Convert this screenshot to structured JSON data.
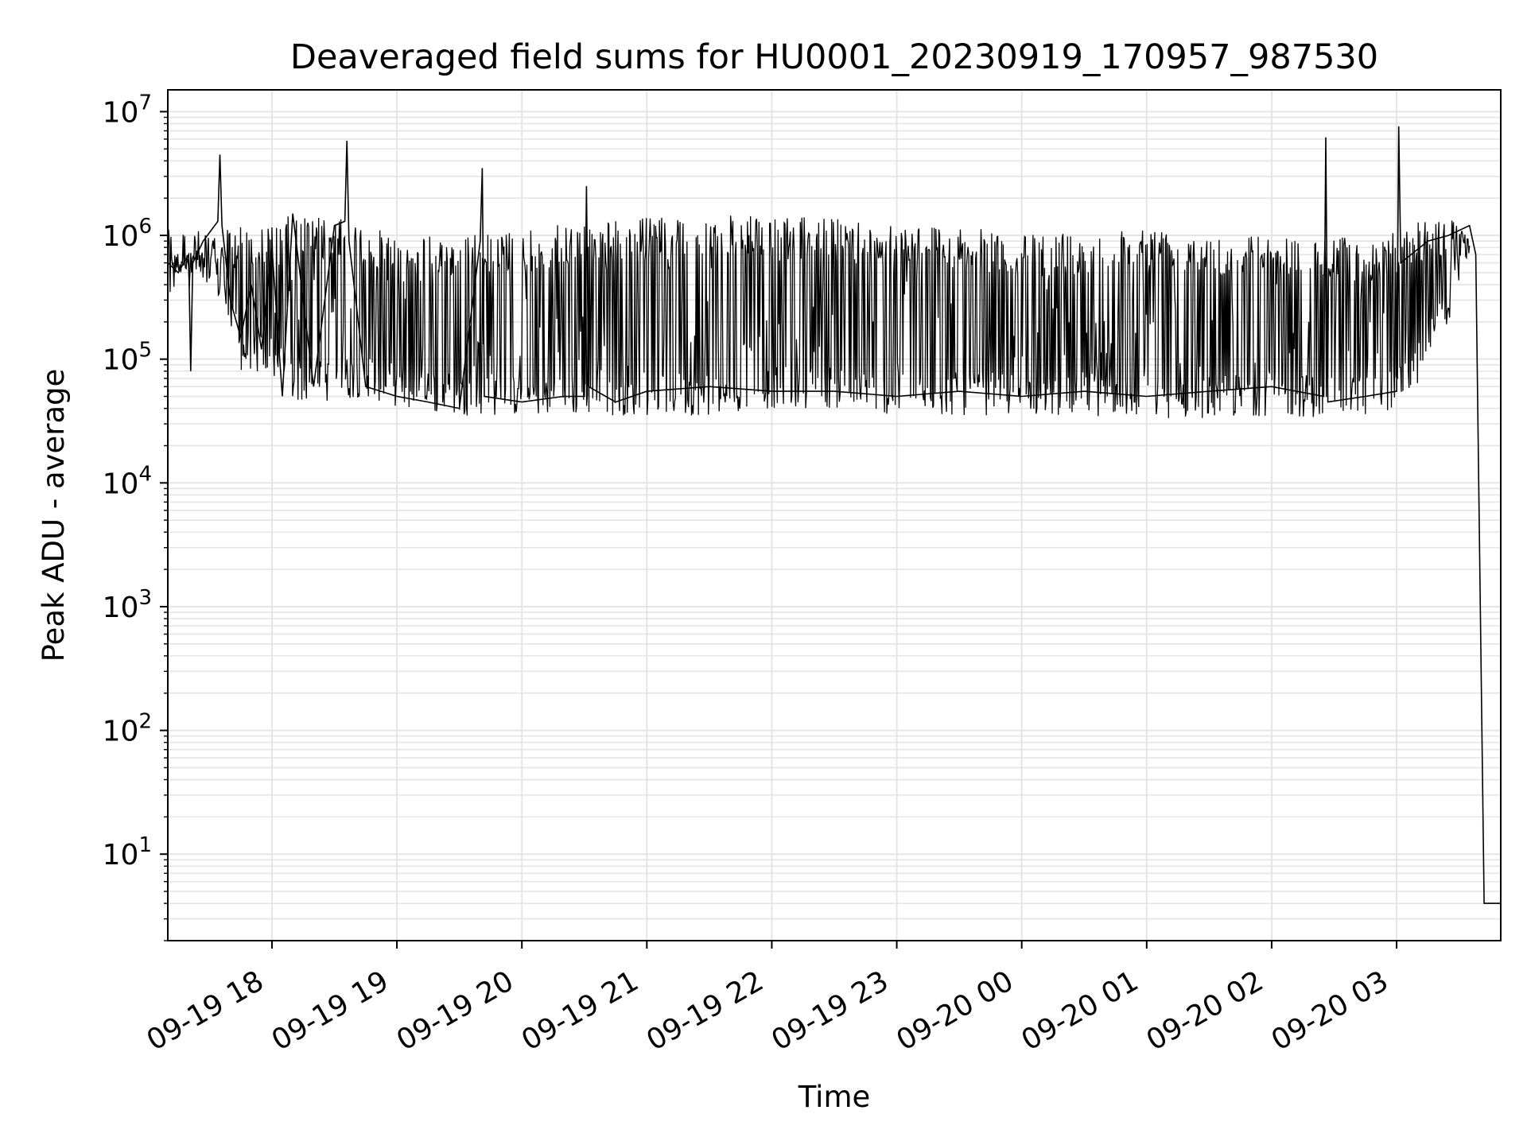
{
  "chart_data": {
    "type": "line",
    "title": "Deaveraged field sums for HU0001_20230919_170957_987530",
    "xlabel": "Time",
    "ylabel": "Peak ADU - average",
    "yscale": "log",
    "ylim": [
      2,
      15000000
    ],
    "xlim": [
      "2023-09-19 17:10",
      "2023-09-20 03:50"
    ],
    "grid": true,
    "legend": "none",
    "line_color": "#000000",
    "grid_color": "#e5e5e5",
    "x_tick_labels": [
      {
        "t": "2023-09-19 18:00",
        "label": "09-19 18"
      },
      {
        "t": "2023-09-19 19:00",
        "label": "09-19 19"
      },
      {
        "t": "2023-09-19 20:00",
        "label": "09-19 20"
      },
      {
        "t": "2023-09-19 21:00",
        "label": "09-19 21"
      },
      {
        "t": "2023-09-19 22:00",
        "label": "09-19 22"
      },
      {
        "t": "2023-09-19 23:00",
        "label": "09-19 23"
      },
      {
        "t": "2023-09-20 00:00",
        "label": "09-20 00"
      },
      {
        "t": "2023-09-20 01:00",
        "label": "09-20 01"
      },
      {
        "t": "2023-09-20 02:00",
        "label": "09-20 02"
      },
      {
        "t": "2023-09-20 03:00",
        "label": "09-20 03"
      }
    ],
    "y_ticks": [
      {
        "value": 10,
        "base": "10",
        "exp": "1"
      },
      {
        "value": 100,
        "base": "10",
        "exp": "2"
      },
      {
        "value": 1000,
        "base": "10",
        "exp": "3"
      },
      {
        "value": 10000,
        "base": "10",
        "exp": "4"
      },
      {
        "value": 100000,
        "base": "10",
        "exp": "5"
      },
      {
        "value": 1000000,
        "base": "10",
        "exp": "6"
      },
      {
        "value": 10000000,
        "base": "10",
        "exp": "7"
      }
    ],
    "series": [
      {
        "x": [
          "2023-09-19 17:10",
          "2023-09-19 17:15",
          "2023-09-19 17:20",
          "2023-09-19 17:21",
          "2023-09-19 17:22",
          "2023-09-19 17:27",
          "2023-09-19 17:34",
          "2023-09-19 17:35",
          "2023-09-19 17:36",
          "2023-09-19 17:40",
          "2023-09-19 17:45",
          "2023-09-19 17:50",
          "2023-09-19 17:55",
          "2023-09-19 18:00",
          "2023-09-19 18:05",
          "2023-09-19 18:10",
          "2023-09-19 18:20",
          "2023-09-19 18:30",
          "2023-09-19 18:35",
          "2023-09-19 18:36",
          "2023-09-19 18:37",
          "2023-09-19 18:45",
          "2023-09-19 19:00",
          "2023-09-19 19:15",
          "2023-09-19 19:30",
          "2023-09-19 19:40",
          "2023-09-19 19:41",
          "2023-09-19 19:42",
          "2023-09-19 20:00",
          "2023-09-19 20:20",
          "2023-09-19 20:30",
          "2023-09-19 20:31",
          "2023-09-19 20:32",
          "2023-09-19 20:45",
          "2023-09-19 21:00",
          "2023-09-19 21:30",
          "2023-09-19 22:00",
          "2023-09-19 22:30",
          "2023-09-19 23:00",
          "2023-09-19 23:30",
          "2023-09-20 00:00",
          "2023-09-20 00:30",
          "2023-09-20 01:00",
          "2023-09-20 01:30",
          "2023-09-20 02:00",
          "2023-09-20 02:25",
          "2023-09-20 02:26",
          "2023-09-20 02:27",
          "2023-09-20 02:45",
          "2023-09-20 03:00",
          "2023-09-20 03:01",
          "2023-09-20 03:02",
          "2023-09-20 03:15",
          "2023-09-20 03:25",
          "2023-09-20 03:35",
          "2023-09-20 03:38",
          "2023-09-20 03:42",
          "2023-09-20 03:44",
          "2023-09-20 03:50"
        ],
        "y": [
          600000,
          500000,
          700000,
          80000,
          600000,
          900000,
          1300000,
          4500000,
          1200000,
          300000,
          150000,
          400000,
          120000,
          800000,
          50000,
          1500000,
          60000,
          1200000,
          1300000,
          5800000,
          900000,
          60000,
          50000,
          45000,
          40000,
          900000,
          3500000,
          50000,
          45000,
          50000,
          50000,
          2500000,
          60000,
          45000,
          55000,
          60000,
          55000,
          55000,
          50000,
          55000,
          50000,
          55000,
          50000,
          55000,
          60000,
          50000,
          6200000,
          45000,
          50000,
          55000,
          7600000,
          600000,
          900000,
          1000000,
          1200000,
          700000,
          4,
          4,
          4
        ]
      }
    ],
    "envelope": {
      "note_upper_lower": "dense oscillation between lower and upper bounds across the record",
      "t": [
        "2023-09-19 17:10",
        "2023-09-19 17:30",
        "2023-09-19 17:45",
        "2023-09-19 18:00",
        "2023-09-19 18:10",
        "2023-09-19 18:30",
        "2023-09-19 18:45",
        "2023-09-19 19:00",
        "2023-09-19 19:30",
        "2023-09-19 20:00",
        "2023-09-19 20:30",
        "2023-09-19 21:00",
        "2023-09-19 21:30",
        "2023-09-19 22:00",
        "2023-09-19 22:30",
        "2023-09-19 23:00",
        "2023-09-19 23:30",
        "2023-09-20 00:00",
        "2023-09-20 00:30",
        "2023-09-20 01:00",
        "2023-09-20 01:30",
        "2023-09-20 02:00",
        "2023-09-20 02:30",
        "2023-09-20 02:45",
        "2023-09-20 03:00",
        "2023-09-20 03:10",
        "2023-09-20 03:25",
        "2023-09-20 03:35"
      ],
      "upper": [
        700000,
        900000,
        1300000,
        1200000,
        1500000,
        1400000,
        1200000,
        1000000,
        1000000,
        1100000,
        1300000,
        1400000,
        1500000,
        1400000,
        1400000,
        1300000,
        1200000,
        1000000,
        1100000,
        1200000,
        1100000,
        1000000,
        1000000,
        900000,
        1100000,
        1300000,
        1400000,
        1200000
      ],
      "lower": [
        500000,
        500000,
        80000,
        70000,
        45000,
        45000,
        50000,
        40000,
        35000,
        35000,
        35000,
        35000,
        35000,
        40000,
        40000,
        35000,
        35000,
        35000,
        35000,
        33000,
        33000,
        35000,
        33000,
        35000,
        40000,
        60000,
        200000,
        700000
      ]
    }
  }
}
